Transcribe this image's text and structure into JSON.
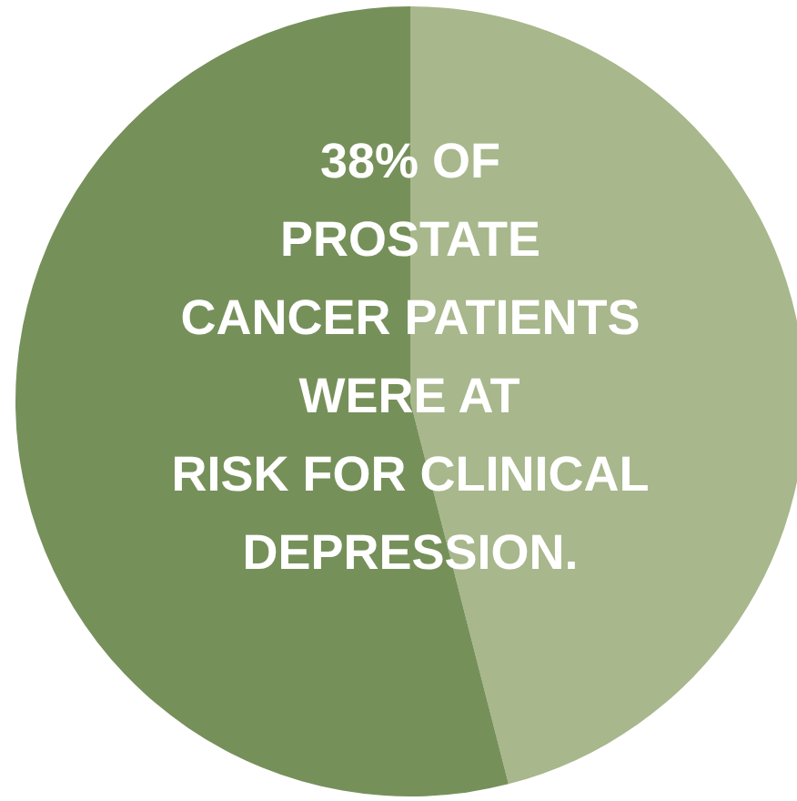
{
  "chart_data": {
    "type": "pie",
    "categories": [
      null,
      null
    ],
    "values": [
      46,
      54
    ],
    "colors": [
      "#a8b78c",
      "#76905a"
    ],
    "annotations": [
      "38% OF\nPROSTATE\nCANCER PATIENTS\nWERE AT\nRISK FOR CLINICAL\nDEPRESSION."
    ]
  }
}
